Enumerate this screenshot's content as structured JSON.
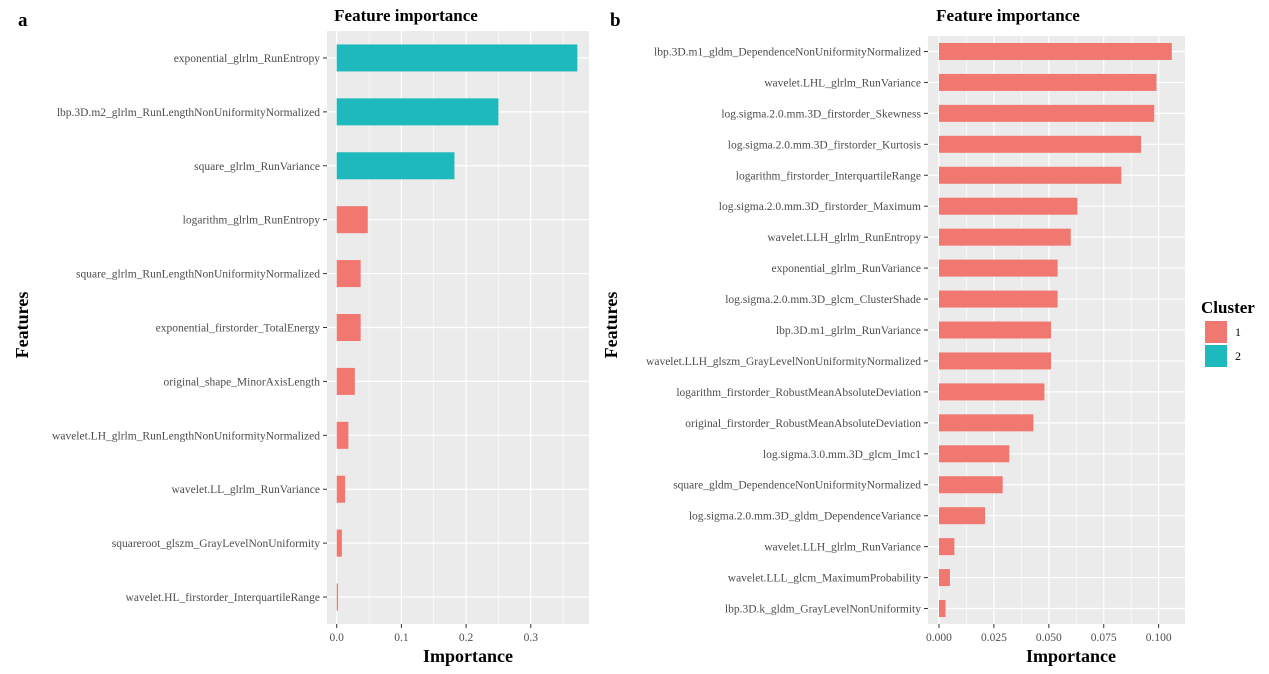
{
  "chart_data": [
    {
      "type": "bar",
      "orientation": "horizontal",
      "panel": "a",
      "title": "Feature importance",
      "xlabel": "Importance",
      "ylabel": "Features",
      "xlim": [
        -0.015,
        0.39
      ],
      "xticks": [
        0.0,
        0.1,
        0.2,
        0.3
      ],
      "xtick_labels": [
        "0.0",
        "0.1",
        "0.2",
        "0.3"
      ],
      "grid": true,
      "bars": [
        {
          "feature": "exponential_glrlm_RunEntropy",
          "value": 0.372,
          "cluster": "2"
        },
        {
          "feature": "lbp.3D.m2_glrlm_RunLengthNonUniformityNormalized",
          "value": 0.25,
          "cluster": "2"
        },
        {
          "feature": "square_glrlm_RunVariance",
          "value": 0.182,
          "cluster": "2"
        },
        {
          "feature": "logarithm_glrlm_RunEntropy",
          "value": 0.048,
          "cluster": "1"
        },
        {
          "feature": "square_glrlm_RunLengthNonUniformityNormalized",
          "value": 0.037,
          "cluster": "1"
        },
        {
          "feature": "exponential_firstorder_TotalEnergy",
          "value": 0.037,
          "cluster": "1"
        },
        {
          "feature": "original_shape_MinorAxisLength",
          "value": 0.028,
          "cluster": "1"
        },
        {
          "feature": "wavelet.LH_glrlm_RunLengthNonUniformityNormalized",
          "value": 0.018,
          "cluster": "1"
        },
        {
          "feature": "wavelet.LL_glrlm_RunVariance",
          "value": 0.013,
          "cluster": "1"
        },
        {
          "feature": "squareroot_glszm_GrayLevelNonUniformity",
          "value": 0.008,
          "cluster": "1"
        },
        {
          "feature": "wavelet.HL_firstorder_InterquartileRange",
          "value": 0.002,
          "cluster": "1"
        }
      ]
    },
    {
      "type": "bar",
      "orientation": "horizontal",
      "panel": "b",
      "title": "Feature importance",
      "xlabel": "Importance",
      "ylabel": "Features",
      "xlim": [
        -0.005,
        0.112
      ],
      "xticks": [
        0.0,
        0.025,
        0.05,
        0.075,
        0.1
      ],
      "xtick_labels": [
        "0.000",
        "0.025",
        "0.050",
        "0.075",
        "0.100"
      ],
      "grid": true,
      "bars": [
        {
          "feature": "lbp.3D.m1_gldm_DependenceNonUniformityNormalized",
          "value": 0.106,
          "cluster": "1"
        },
        {
          "feature": "wavelet.LHL_glrlm_RunVariance",
          "value": 0.099,
          "cluster": "1"
        },
        {
          "feature": "log.sigma.2.0.mm.3D_firstorder_Skewness",
          "value": 0.098,
          "cluster": "1"
        },
        {
          "feature": "log.sigma.2.0.mm.3D_firstorder_Kurtosis",
          "value": 0.092,
          "cluster": "1"
        },
        {
          "feature": "logarithm_firstorder_InterquartileRange",
          "value": 0.083,
          "cluster": "1"
        },
        {
          "feature": "log.sigma.2.0.mm.3D_firstorder_Maximum",
          "value": 0.063,
          "cluster": "1"
        },
        {
          "feature": "wavelet.LLH_glrlm_RunEntropy",
          "value": 0.06,
          "cluster": "1"
        },
        {
          "feature": "exponential_glrlm_RunVariance",
          "value": 0.054,
          "cluster": "1"
        },
        {
          "feature": "log.sigma.2.0.mm.3D_glcm_ClusterShade",
          "value": 0.054,
          "cluster": "1"
        },
        {
          "feature": "lbp.3D.m1_glrlm_RunVariance",
          "value": 0.051,
          "cluster": "1"
        },
        {
          "feature": "wavelet.LLH_glszm_GrayLevelNonUniformityNormalized",
          "value": 0.051,
          "cluster": "1"
        },
        {
          "feature": "logarithm_firstorder_RobustMeanAbsoluteDeviation",
          "value": 0.048,
          "cluster": "1"
        },
        {
          "feature": "original_firstorder_RobustMeanAbsoluteDeviation",
          "value": 0.043,
          "cluster": "1"
        },
        {
          "feature": "log.sigma.3.0.mm.3D_glcm_Imc1",
          "value": 0.032,
          "cluster": "1"
        },
        {
          "feature": "square_gldm_DependenceNonUniformityNormalized",
          "value": 0.029,
          "cluster": "1"
        },
        {
          "feature": "log.sigma.2.0.mm.3D_gldm_DependenceVariance",
          "value": 0.021,
          "cluster": "1"
        },
        {
          "feature": "wavelet.LLH_glrlm_RunVariance",
          "value": 0.007,
          "cluster": "1"
        },
        {
          "feature": "wavelet.LLL_glcm_MaximumProbability",
          "value": 0.005,
          "cluster": "1"
        },
        {
          "feature": "lbp.3D.k_gldm_GrayLevelNonUniformity",
          "value": 0.003,
          "cluster": "1"
        }
      ]
    }
  ],
  "legend": {
    "title": "Cluster",
    "placement": "right",
    "items": [
      {
        "label": "1",
        "color": "#F07870"
      },
      {
        "label": "2",
        "color": "#1EB9BC"
      }
    ]
  },
  "colors": {
    "panel_bg": "#EBEBEB",
    "grid": "#FFFFFF"
  }
}
